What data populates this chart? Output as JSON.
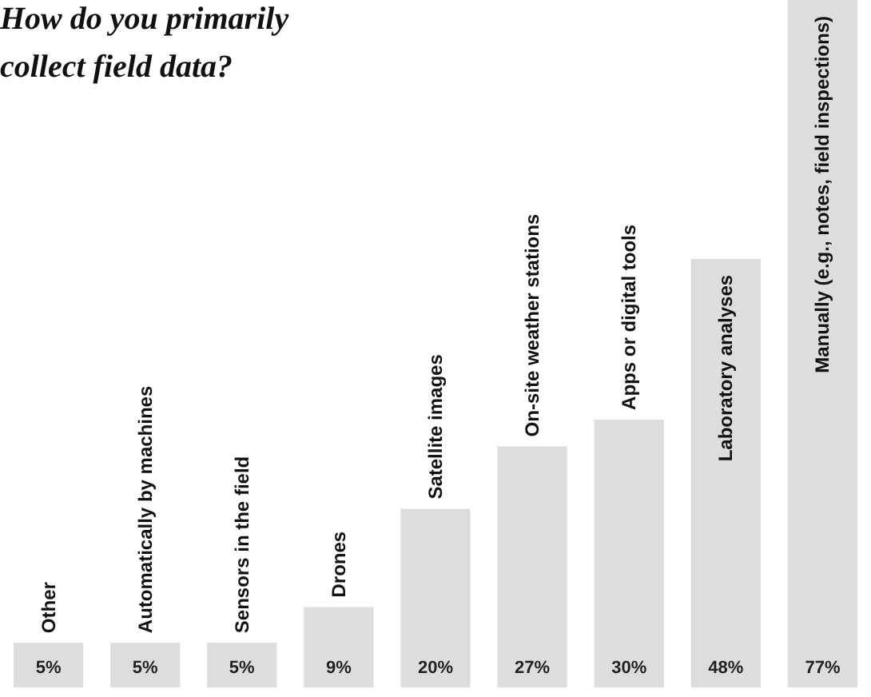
{
  "chart_data": {
    "type": "bar",
    "title": "How do you primarily\ncollect field data?",
    "categories": [
      "Other",
      "Automatically by machines",
      "Sensors in the field",
      "Drones",
      "Satellite images",
      "On-site weather stations",
      "Apps or digital tools",
      "Laboratory analyses",
      "Manually (e.g., notes, field inspections)"
    ],
    "values": [
      5,
      5,
      5,
      9,
      20,
      27,
      30,
      48,
      77
    ],
    "value_labels": [
      "5%",
      "5%",
      "5%",
      "9%",
      "20%",
      "27%",
      "30%",
      "48%",
      "77%"
    ],
    "color": "#dddddd"
  }
}
